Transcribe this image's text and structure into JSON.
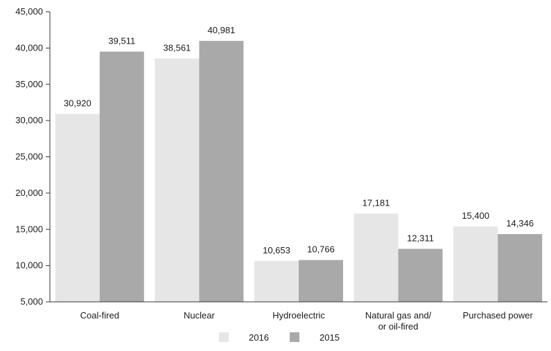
{
  "chart_data": {
    "type": "bar",
    "title": "",
    "xlabel": "",
    "ylabel": "",
    "categories": [
      [
        "Coal-fired"
      ],
      [
        "Nuclear"
      ],
      [
        "Hydroelectric"
      ],
      [
        "Natural gas and/",
        "or oil-fired"
      ],
      [
        "Purchased power"
      ]
    ],
    "series": [
      {
        "name": "2016",
        "color": "#e6e6e6",
        "values": [
          30920,
          38561,
          10653,
          17181,
          15400
        ],
        "labels": [
          "30,920",
          "38,561",
          "10,653",
          "17,181",
          "15,400"
        ]
      },
      {
        "name": "2015",
        "color": "#a9a9a9",
        "values": [
          39511,
          40981,
          10766,
          12311,
          14346
        ],
        "labels": [
          "39,511",
          "40,981",
          "10,766",
          "12,311",
          "14,346"
        ]
      }
    ],
    "ylim": [
      5000,
      45000
    ],
    "yticks": [
      5000,
      10000,
      15000,
      20000,
      25000,
      30000,
      35000,
      40000,
      45000
    ],
    "ytick_labels": [
      "5,000",
      "10,000",
      "15,000",
      "20,000",
      "25,000",
      "30,000",
      "35,000",
      "40,000",
      "45,000"
    ],
    "grid": false,
    "legend_position": "bottom-center"
  }
}
